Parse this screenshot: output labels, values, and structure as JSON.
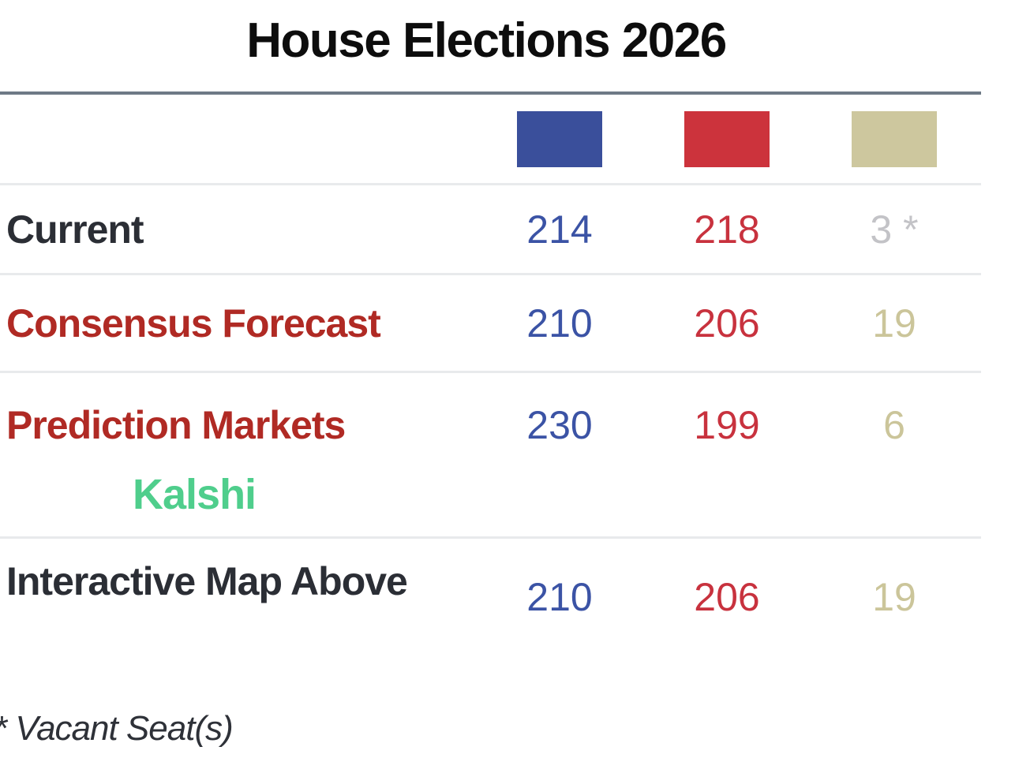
{
  "title": "House Elections 2026",
  "legend": {
    "swatches": [
      {
        "id": "democratic-blue",
        "color": "#3a4f9b"
      },
      {
        "id": "republican-red",
        "color": "#cc333c"
      },
      {
        "id": "tossup-tan",
        "color": "#cdc79e"
      }
    ]
  },
  "rows": [
    {
      "label": "Current",
      "values": [
        "214",
        "218",
        "3 *"
      ]
    },
    {
      "label": "Consensus Forecast",
      "values": [
        "210",
        "206",
        "19"
      ]
    },
    {
      "label": "Prediction Markets",
      "sublabel": "Kalshi",
      "values": [
        "230",
        "199",
        "6"
      ]
    },
    {
      "label": "Interactive Map Above",
      "values": [
        "210",
        "206",
        "19"
      ]
    }
  ],
  "footnote": "* Vacant Seat(s)",
  "colors": {
    "blue_swatch": "#3a4f9b",
    "red_swatch": "#cc333c",
    "tan_swatch": "#cdc79e",
    "blue_value_text": "#3b53a5",
    "red_value_text": "#c8323e",
    "tan_value_text": "#cbc59a",
    "gray_value_text": "#c3c3c7",
    "dark_label_text": "#2b2e35",
    "red_label_text": "#b02a24",
    "kalshi_green": "#4fce8c",
    "title_divider": "#6e7a86",
    "row_divider": "#e8eaec"
  },
  "chart_data": {
    "type": "table",
    "title": "House Elections 2026",
    "column_swatch_colors": [
      "#3a4f9b",
      "#cc333c",
      "#cdc79e"
    ],
    "rows": [
      {
        "label": "Current",
        "blue": 214,
        "red": 218,
        "tan": "3 *"
      },
      {
        "label": "Consensus Forecast",
        "blue": 210,
        "red": 206,
        "tan": 19
      },
      {
        "label": "Prediction Markets (Kalshi)",
        "blue": 230,
        "red": 199,
        "tan": 6
      },
      {
        "label": "Interactive Map Above",
        "blue": 210,
        "red": 206,
        "tan": 19
      }
    ],
    "footnote": "* Vacant Seat(s)"
  }
}
